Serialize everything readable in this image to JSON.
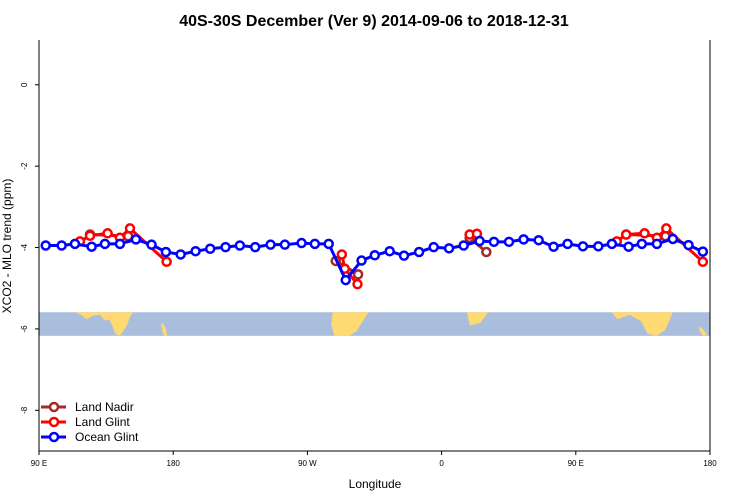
{
  "chart_data": {
    "type": "line",
    "title": "40S-30S December (Ver 9)   2014-09-06 to 2018-12-31",
    "xlabel": "Longitude",
    "ylabel": "XCO2 - MLO trend (ppm)",
    "xlim": [
      90,
      540
    ],
    "ylim": [
      -9,
      1.1
    ],
    "x_ticks": [
      {
        "v": 90,
        "label": "90 E"
      },
      {
        "v": 180,
        "label": "180"
      },
      {
        "v": 270,
        "label": "90 W"
      },
      {
        "v": 360,
        "label": "0"
      },
      {
        "v": 450,
        "label": "90 E"
      },
      {
        "v": 540,
        "label": "180"
      }
    ],
    "y_ticks": [
      {
        "v": 0,
        "label": "0"
      },
      {
        "v": -2,
        "label": "-2"
      },
      {
        "v": -4,
        "label": "-4"
      },
      {
        "v": -6,
        "label": "-6"
      },
      {
        "v": -8,
        "label": "-8"
      }
    ],
    "land_band": [
      -5.59,
      -6.17
    ],
    "legend_position": "bottom-left",
    "series": [
      {
        "name": "Land Nadir",
        "color": "#a52a2a",
        "x": [
          124.2,
          149.8,
          289,
          304,
          378.8,
          390,
          483.8,
          510.1
        ],
        "y": [
          -3.68,
          -3.72,
          -4.33,
          -4.66,
          -3.76,
          -4.11,
          -3.68,
          -3.72
        ],
        "segments": [
          [
            0,
            1
          ],
          [
            2,
            3
          ],
          [
            4,
            5
          ],
          [
            6,
            7
          ]
        ]
      },
      {
        "name": "Land Glint",
        "color": "#ff0000",
        "x": [
          117.5,
          124.2,
          136,
          144.3,
          151,
          175.6,
          293.1,
          295.1,
          303.6,
          378.8,
          383.7,
          477.5,
          483.8,
          496.1,
          504.4,
          510.7,
          535.2
        ],
        "y": [
          -3.85,
          -3.71,
          -3.65,
          -3.76,
          -3.53,
          -4.35,
          -4.17,
          -4.52,
          -4.9,
          -3.68,
          -3.66,
          -3.85,
          -3.68,
          -3.65,
          -3.76,
          -3.53,
          -4.35
        ],
        "segments": [
          [
            0,
            5
          ],
          [
            6,
            8
          ],
          [
            9,
            10
          ],
          [
            11,
            16
          ]
        ]
      },
      {
        "name": "Ocean Glint",
        "color": "#0000ff",
        "x": [
          94.5,
          105.2,
          114.1,
          125.3,
          134.2,
          144.3,
          155,
          165.5,
          175.1,
          185,
          195,
          204.8,
          215.1,
          224.7,
          235,
          245.3,
          254.9,
          266.1,
          275,
          284.3,
          295.7,
          306.3,
          315.2,
          325.2,
          334.8,
          344.9,
          354.7,
          365,
          374.8,
          385.5,
          395.1,
          405.2,
          415,
          425.1,
          435.1,
          444.5,
          454.8,
          465.1,
          474.2,
          485.4,
          494.3,
          504.4,
          515.1,
          525.6,
          535.2
        ],
        "y": [
          -3.95,
          -3.95,
          -3.91,
          -3.98,
          -3.91,
          -3.91,
          -3.8,
          -3.93,
          -4.11,
          -4.17,
          -4.09,
          -4.03,
          -3.99,
          -3.95,
          -3.99,
          -3.93,
          -3.93,
          -3.89,
          -3.91,
          -3.91,
          -4.8,
          -4.32,
          -4.19,
          -4.09,
          -4.2,
          -4.11,
          -3.99,
          -4.02,
          -3.95,
          -3.84,
          -3.86,
          -3.86,
          -3.8,
          -3.82,
          -3.98,
          -3.91,
          -3.97,
          -3.97,
          -3.91,
          -3.98,
          -3.91,
          -3.91,
          -3.79,
          -3.94,
          -4.1
        ],
        "segments": [
          [
            0,
            44
          ]
        ]
      }
    ]
  }
}
